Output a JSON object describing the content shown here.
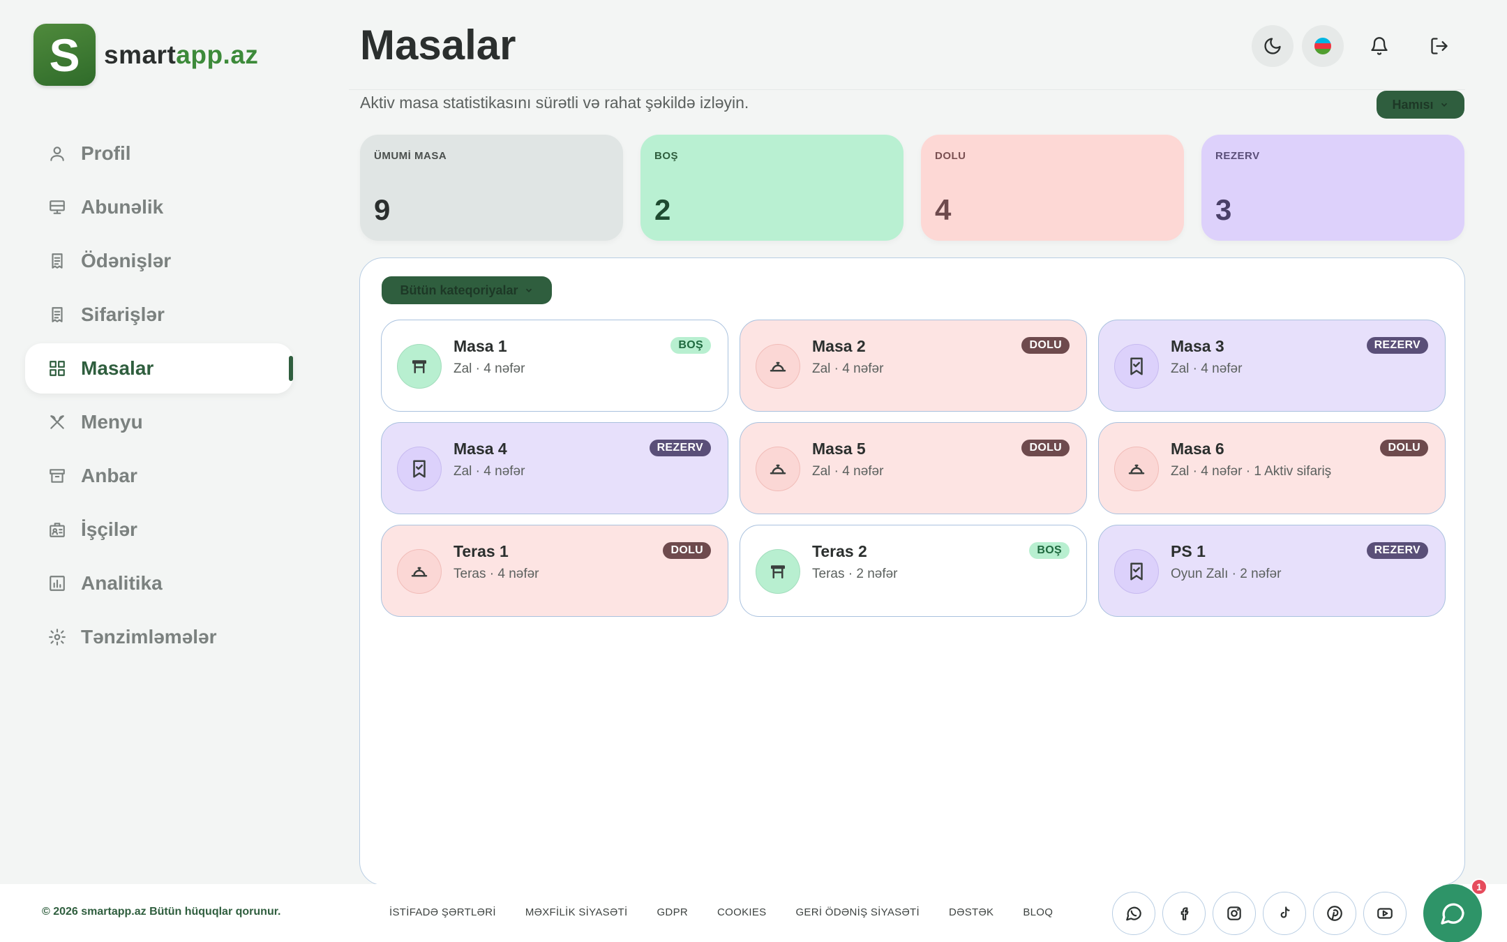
{
  "brand": {
    "letter": "S",
    "name_a": "smart",
    "name_b": "app.az"
  },
  "sidebar": {
    "items": [
      {
        "label": "Profil",
        "icon": "user-icon",
        "active": false
      },
      {
        "label": "Abunəlik",
        "icon": "monitor-icon",
        "active": false
      },
      {
        "label": "Ödənişlər",
        "icon": "receipt-icon",
        "active": false
      },
      {
        "label": "Sifarişlər",
        "icon": "receipt-icon",
        "active": false
      },
      {
        "label": "Masalar",
        "icon": "grid-icon",
        "active": true
      },
      {
        "label": "Menyu",
        "icon": "utensils-icon",
        "active": false
      },
      {
        "label": "Anbar",
        "icon": "archive-icon",
        "active": false
      },
      {
        "label": "İşçilər",
        "icon": "badge-icon",
        "active": false
      },
      {
        "label": "Analitika",
        "icon": "chart-icon",
        "active": false
      },
      {
        "label": "Tənzimləmələr",
        "icon": "gear-icon",
        "active": false
      }
    ]
  },
  "header": {
    "title": "Masalar",
    "subtitle": "Aktiv masa statistikasını sürətli və rahat şəkildə izləyin.",
    "filter_label": "Hamısı",
    "flag_colors": [
      "#00b5e2",
      "#ef3340",
      "#509e2f"
    ]
  },
  "stats": [
    {
      "label": "ÜMUMİ MASA",
      "value": "9",
      "bg": "#e0e5e4",
      "fg": "#4a4f4d",
      "vfg": "#2b2f2e"
    },
    {
      "label": "BOŞ",
      "value": "2",
      "bg": "#b9f0d2",
      "fg": "#2f5e3e",
      "vfg": "#1f4a30"
    },
    {
      "label": "DOLU",
      "value": "4",
      "bg": "#fdd8d5",
      "fg": "#7a5052",
      "vfg": "#6e4a4d"
    },
    {
      "label": "REZERV",
      "value": "3",
      "bg": "#ddd1fb",
      "fg": "#5a4f78",
      "vfg": "#4a4068"
    }
  ],
  "panel": {
    "category_label": "Bütün kateqoriyalar",
    "tables": [
      {
        "name": "Masa 1",
        "info": "Zal · 4 nəfər",
        "status": "BOŞ",
        "kind": "bos"
      },
      {
        "name": "Masa 2",
        "info": "Zal · 4 nəfər",
        "status": "DOLU",
        "kind": "dolu"
      },
      {
        "name": "Masa 3",
        "info": "Zal · 4 nəfər",
        "status": "REZERV",
        "kind": "rezerv"
      },
      {
        "name": "Masa 4",
        "info": "Zal · 4 nəfər",
        "status": "REZERV",
        "kind": "rezerv"
      },
      {
        "name": "Masa 5",
        "info": "Zal · 4 nəfər",
        "status": "DOLU",
        "kind": "dolu"
      },
      {
        "name": "Masa 6",
        "info": "Zal · 4 nəfər · 1 Aktiv sifariş",
        "status": "DOLU",
        "kind": "dolu"
      },
      {
        "name": "Teras 1",
        "info": "Teras · 4 nəfər",
        "status": "DOLU",
        "kind": "dolu"
      },
      {
        "name": "Teras 2",
        "info": "Teras · 2 nəfər",
        "status": "BOŞ",
        "kind": "bos"
      },
      {
        "name": "PS 1",
        "info": "Oyun Zalı · 2 nəfər",
        "status": "REZERV",
        "kind": "rezerv"
      }
    ]
  },
  "footer": {
    "copyright": "© 2026 smartapp.az Bütün hüquqlar qorunur.",
    "links": [
      "İSTİFADƏ ŞƏRTLƏRİ",
      "MƏXFİLİK SİYASƏTİ",
      "GDPR",
      "COOKIES",
      "GERİ ÖDƏNİŞ SİYASƏTİ",
      "DƏSTƏK",
      "BLOQ"
    ],
    "social": [
      "whatsapp-icon",
      "facebook-icon",
      "instagram-icon",
      "tiktok-icon",
      "pinterest-icon",
      "youtube-icon"
    ],
    "chat_badge": "1"
  }
}
